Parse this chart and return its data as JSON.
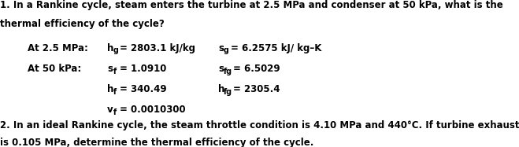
{
  "bg_color": "#ffffff",
  "text_color": "#000000",
  "line1_q1": "1. In a Rankine cycle, steam enters the turbine at 2.5 MPa and condenser at 50 kPa, what is the",
  "line2_q1": "thermal efficiency of the cycle?",
  "line1_q2": "2. In an ideal Rankine cycle, the steam throttle condition is 4.10 MPa and 440°C. If turbine exhaust",
  "line2_q2": "is 0.105 MPa, determine the thermal efficiency of the cycle.",
  "font_size": 8.5
}
